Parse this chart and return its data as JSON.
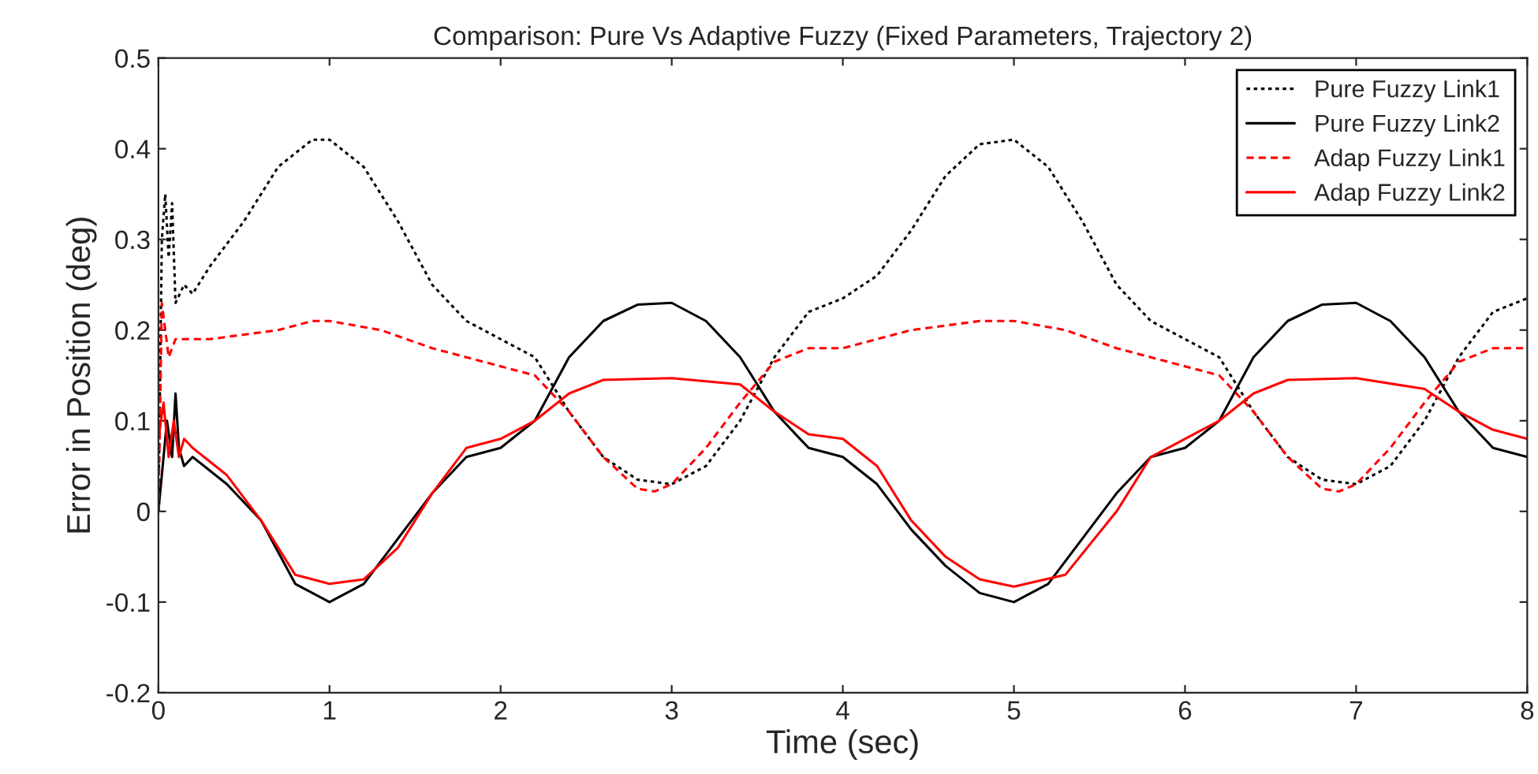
{
  "chart_data": {
    "type": "line",
    "title": "Comparison: Pure Vs Adaptive Fuzzy (Fixed Parameters, Trajectory 2)",
    "xlabel": "Time (sec)",
    "ylabel": "Error in Position (deg)",
    "xlim": [
      0,
      8
    ],
    "ylim": [
      -0.2,
      0.5
    ],
    "xticks": [
      0,
      1,
      2,
      3,
      4,
      5,
      6,
      7,
      8
    ],
    "yticks": [
      -0.2,
      -0.1,
      0,
      0.1,
      0.2,
      0.3,
      0.4,
      0.5
    ],
    "legend": "top right",
    "grid": false,
    "marker": "none",
    "series": [
      {
        "name": "Pure Fuzzy Link1",
        "color": "#000000",
        "line_style": "dotted",
        "x": [
          0,
          0.02,
          0.04,
          0.06,
          0.08,
          0.1,
          0.15,
          0.2,
          0.3,
          0.5,
          0.7,
          0.9,
          1.0,
          1.2,
          1.4,
          1.6,
          1.8,
          2.0,
          2.2,
          2.4,
          2.6,
          2.8,
          3.0,
          3.2,
          3.4,
          3.6,
          3.8,
          4.0,
          4.2,
          4.4,
          4.6,
          4.8,
          5.0,
          5.2,
          5.4,
          5.6,
          5.8,
          6.0,
          6.2,
          6.4,
          6.6,
          6.8,
          7.0,
          7.2,
          7.4,
          7.6,
          7.8,
          8.0
        ],
        "values": [
          0,
          0.3,
          0.35,
          0.28,
          0.34,
          0.23,
          0.25,
          0.24,
          0.27,
          0.32,
          0.38,
          0.41,
          0.41,
          0.38,
          0.32,
          0.25,
          0.21,
          0.19,
          0.17,
          0.11,
          0.06,
          0.035,
          0.03,
          0.05,
          0.1,
          0.17,
          0.22,
          0.235,
          0.26,
          0.31,
          0.37,
          0.405,
          0.41,
          0.38,
          0.32,
          0.25,
          0.21,
          0.19,
          0.17,
          0.11,
          0.06,
          0.035,
          0.03,
          0.05,
          0.1,
          0.17,
          0.22,
          0.235
        ]
      },
      {
        "name": "Pure Fuzzy Link2",
        "color": "#000000",
        "line_style": "solid",
        "x": [
          0,
          0.05,
          0.08,
          0.1,
          0.12,
          0.15,
          0.2,
          0.4,
          0.6,
          0.8,
          1.0,
          1.2,
          1.4,
          1.6,
          1.8,
          2.0,
          2.2,
          2.4,
          2.6,
          2.8,
          3.0,
          3.2,
          3.4,
          3.6,
          3.8,
          4.0,
          4.2,
          4.4,
          4.6,
          4.8,
          5.0,
          5.2,
          5.4,
          5.6,
          5.8,
          6.0,
          6.2,
          6.4,
          6.6,
          6.8,
          7.0,
          7.2,
          7.4,
          7.6,
          7.8,
          8.0
        ],
        "values": [
          0,
          0.1,
          0.06,
          0.13,
          0.07,
          0.05,
          0.06,
          0.03,
          -0.01,
          -0.08,
          -0.1,
          -0.08,
          -0.03,
          0.02,
          0.06,
          0.07,
          0.1,
          0.17,
          0.21,
          0.228,
          0.23,
          0.21,
          0.17,
          0.11,
          0.07,
          0.06,
          0.03,
          -0.02,
          -0.06,
          -0.09,
          -0.1,
          -0.08,
          -0.03,
          0.02,
          0.06,
          0.07,
          0.1,
          0.17,
          0.21,
          0.228,
          0.23,
          0.21,
          0.17,
          0.11,
          0.07,
          0.06
        ]
      },
      {
        "name": "Adap Fuzzy Link1",
        "color": "#ff0000",
        "line_style": "dashed",
        "x": [
          0,
          0.02,
          0.04,
          0.06,
          0.1,
          0.3,
          0.5,
          0.7,
          0.9,
          1.0,
          1.3,
          1.6,
          1.8,
          2.0,
          2.2,
          2.4,
          2.6,
          2.8,
          2.9,
          3.0,
          3.2,
          3.4,
          3.6,
          3.8,
          4.0,
          4.4,
          4.8,
          5.0,
          5.3,
          5.6,
          6.0,
          6.2,
          6.4,
          6.6,
          6.8,
          6.9,
          7.0,
          7.2,
          7.4,
          7.6,
          7.8,
          8.0
        ],
        "values": [
          0,
          0.23,
          0.2,
          0.17,
          0.19,
          0.19,
          0.195,
          0.2,
          0.21,
          0.21,
          0.2,
          0.18,
          0.17,
          0.16,
          0.15,
          0.11,
          0.06,
          0.025,
          0.022,
          0.03,
          0.07,
          0.12,
          0.165,
          0.18,
          0.18,
          0.2,
          0.21,
          0.21,
          0.2,
          0.18,
          0.16,
          0.15,
          0.11,
          0.06,
          0.025,
          0.022,
          0.03,
          0.07,
          0.12,
          0.165,
          0.18,
          0.18
        ]
      },
      {
        "name": "Adap Fuzzy Link2",
        "color": "#ff0000",
        "line_style": "solid",
        "x": [
          0,
          0.03,
          0.06,
          0.09,
          0.12,
          0.15,
          0.2,
          0.4,
          0.6,
          0.8,
          1.0,
          1.2,
          1.4,
          1.6,
          1.8,
          2.0,
          2.2,
          2.4,
          2.6,
          3.0,
          3.4,
          3.6,
          3.8,
          4.0,
          4.2,
          4.4,
          4.6,
          4.8,
          5.0,
          5.3,
          5.6,
          5.8,
          6.0,
          6.2,
          6.4,
          6.6,
          7.0,
          7.4,
          7.6,
          7.8,
          8.0
        ],
        "values": [
          0.08,
          0.12,
          0.06,
          0.1,
          0.06,
          0.08,
          0.07,
          0.04,
          -0.01,
          -0.07,
          -0.08,
          -0.075,
          -0.04,
          0.02,
          0.07,
          0.08,
          0.1,
          0.13,
          0.145,
          0.147,
          0.14,
          0.11,
          0.085,
          0.08,
          0.05,
          -0.01,
          -0.05,
          -0.075,
          -0.083,
          -0.07,
          0.0,
          0.06,
          0.08,
          0.1,
          0.13,
          0.145,
          0.147,
          0.135,
          0.11,
          0.09,
          0.08
        ]
      }
    ]
  }
}
